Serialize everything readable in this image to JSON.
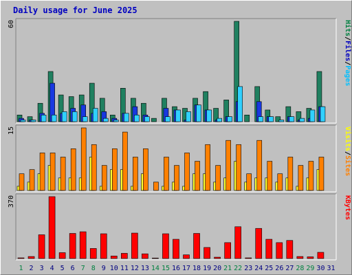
{
  "chart_data": {
    "type": "bar",
    "title": "Daily usage for June 2025",
    "categories": [
      "1",
      "2",
      "3",
      "4",
      "5",
      "6",
      "7",
      "8",
      "9",
      "10",
      "11",
      "12",
      "13",
      "14",
      "15",
      "16",
      "17",
      "18",
      "19",
      "20",
      "21",
      "22",
      "23",
      "24",
      "25",
      "26",
      "27",
      "28",
      "29",
      "30",
      "31"
    ],
    "weekend_days": [
      "1",
      "7",
      "8",
      "14",
      "15",
      "21",
      "22",
      "28",
      "29"
    ],
    "weekend_color": "#008040",
    "weekday_color": "#000080",
    "panels": [
      {
        "id": "hits-files-pages",
        "ymax_label": "60",
        "ylim": [
          0,
          60
        ],
        "legend": [
          {
            "text": "Hits",
            "color": "#008040"
          },
          {
            "text": "/",
            "color": "#000000"
          },
          {
            "text": "Files",
            "color": "#0000c0"
          },
          {
            "text": "/",
            "color": "#000000"
          },
          {
            "text": "Pages",
            "color": "#00c0ff"
          }
        ],
        "series": [
          {
            "name": "Hits",
            "color": "#208060",
            "values": [
              4,
              3,
              11,
              30,
              16,
              15,
              16,
              23,
              14,
              4,
              20,
              14,
              11,
              2,
              14,
              9,
              8,
              14,
              18,
              8,
              13,
              60,
              4,
              21,
              7,
              3,
              9,
              6,
              8,
              30,
              0
            ]
          },
          {
            "name": "Files",
            "color": "#1838e0",
            "values": [
              2,
              1,
              5,
              23,
              5,
              8,
              10,
              5,
              6,
              2,
              5,
              9,
              4,
              0,
              8,
              7,
              1,
              10,
              7,
              1,
              3,
              12,
              0,
              12,
              3,
              0,
              3,
              1,
              2,
              9,
              0
            ]
          },
          {
            "name": "Pages",
            "color": "#30d0ff",
            "values": [
              1,
              1,
              4,
              4,
              6,
              6,
              3,
              8,
              2,
              1,
              5,
              4,
              3,
              0,
              3,
              7,
              6,
              10,
              7,
              2,
              3,
              21,
              0,
              3,
              3,
              1,
              3,
              2,
              7,
              9,
              0
            ]
          }
        ]
      },
      {
        "id": "visits-sites",
        "ymax_label": "15",
        "ylim": [
          0,
          15
        ],
        "legend": [
          {
            "text": "Visits",
            "color": "#ffff00"
          },
          {
            "text": "/",
            "color": "#000000"
          },
          {
            "text": "Sites",
            "color": "#ff8000"
          }
        ],
        "series": [
          {
            "name": "Visits",
            "color": "#ffff30",
            "values": [
              1,
              2,
              4,
              6,
              3,
              3,
              3,
              8,
              1,
              5,
              5,
              1,
              4,
              0,
              1,
              2,
              1,
              4,
              4,
              2,
              3,
              7,
              2,
              3,
              3,
              2,
              3,
              1,
              3,
              5,
              0
            ]
          },
          {
            "name": "Sites",
            "color": "#ff8000",
            "values": [
              4,
              5,
              9,
              9,
              8,
              10,
              15,
              11,
              6,
              10,
              14,
              8,
              10,
              2,
              8,
              6,
              9,
              7,
              11,
              6,
              12,
              11,
              4,
              12,
              7,
              4,
              8,
              6,
              7,
              8,
              0
            ]
          }
        ]
      },
      {
        "id": "kbytes",
        "ymax_label": "370",
        "ylim": [
          0,
          370
        ],
        "legend": [
          {
            "text": "KBytes",
            "color": "#ff0000"
          }
        ],
        "series": [
          {
            "name": "KBytes",
            "color": "#ff0000",
            "values": [
              4,
              12,
              142,
              370,
              35,
              150,
              160,
              60,
              148,
              15,
              31,
              152,
              28,
              3,
              148,
              115,
              22,
              150,
              66,
              8,
              95,
              190,
              4,
              180,
              115,
              95,
              108,
              12,
              10,
              37,
              0
            ]
          }
        ]
      }
    ]
  }
}
